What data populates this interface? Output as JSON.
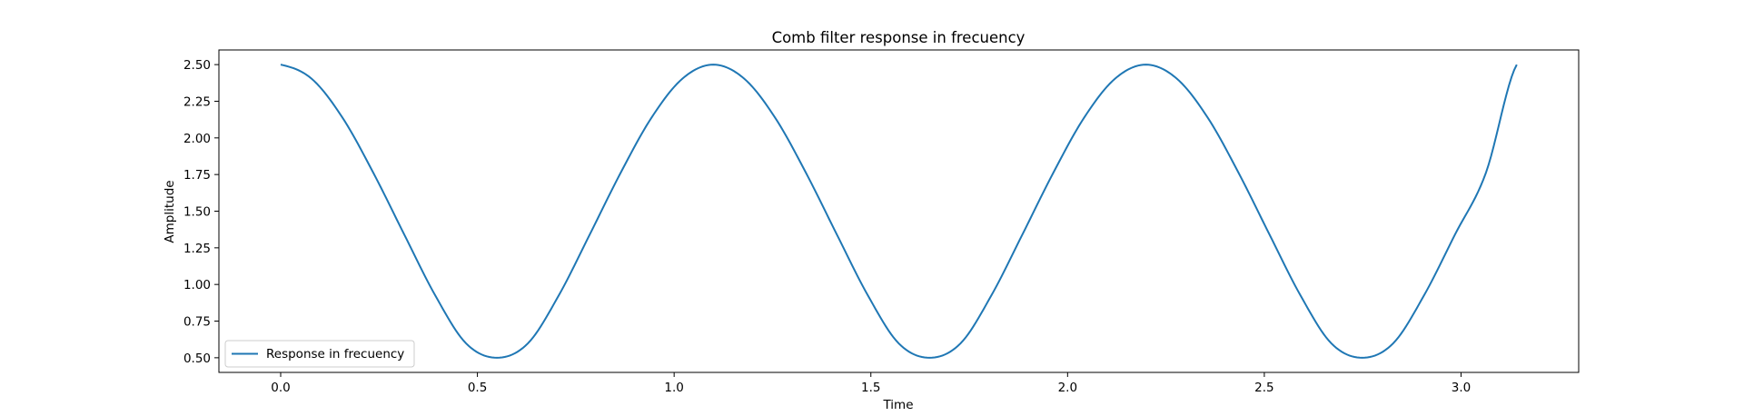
{
  "chart_data": {
    "type": "line",
    "title": "Comb filter response in frecuency",
    "xlabel": "Time",
    "ylabel": "Amplitude",
    "xlim": [
      -0.157,
      3.299
    ],
    "ylim": [
      0.4,
      2.6
    ],
    "xticks": [
      0.0,
      0.5,
      1.0,
      1.5,
      2.0,
      2.5,
      3.0
    ],
    "xtick_labels": [
      "0.0",
      "0.5",
      "1.0",
      "1.5",
      "2.0",
      "2.5",
      "3.0"
    ],
    "yticks": [
      0.5,
      0.75,
      1.0,
      1.25,
      1.5,
      1.75,
      2.0,
      2.25,
      2.5
    ],
    "ytick_labels": [
      "0.50",
      "0.75",
      "1.00",
      "1.25",
      "1.50",
      "1.75",
      "2.00",
      "2.25",
      "2.50"
    ],
    "grid": false,
    "legend_position": "lower-left",
    "series": [
      {
        "name": "Response in frecuency",
        "color": "#1f77b4",
        "x": [
          0.0,
          0.0785,
          0.1571,
          0.2356,
          0.3142,
          0.3927,
          0.4712,
          0.5498,
          0.6283,
          0.7069,
          0.7854,
          0.8639,
          0.9425,
          1.021,
          1.0996,
          1.1781,
          1.2566,
          1.3352,
          1.4137,
          1.4923,
          1.5708,
          1.6493,
          1.7279,
          1.8064,
          1.885,
          1.9635,
          2.042,
          2.1206,
          2.1991,
          2.2777,
          2.3562,
          2.4347,
          2.5133,
          2.5918,
          2.6704,
          2.7489,
          2.8274,
          2.906,
          2.9845,
          3.0631,
          3.1416
        ],
        "y": [
          2.5,
          2.404,
          2.138,
          1.761,
          1.34,
          0.926,
          0.598,
          0.5,
          0.598,
          0.926,
          1.34,
          1.761,
          2.138,
          2.404,
          2.5,
          2.404,
          2.138,
          1.761,
          1.34,
          0.926,
          0.598,
          0.5,
          0.598,
          0.926,
          1.34,
          1.761,
          2.138,
          2.404,
          2.5,
          2.404,
          2.138,
          1.761,
          1.34,
          0.926,
          0.598,
          0.5,
          0.598,
          0.926,
          1.34,
          1.761,
          2.5
        ]
      }
    ]
  }
}
